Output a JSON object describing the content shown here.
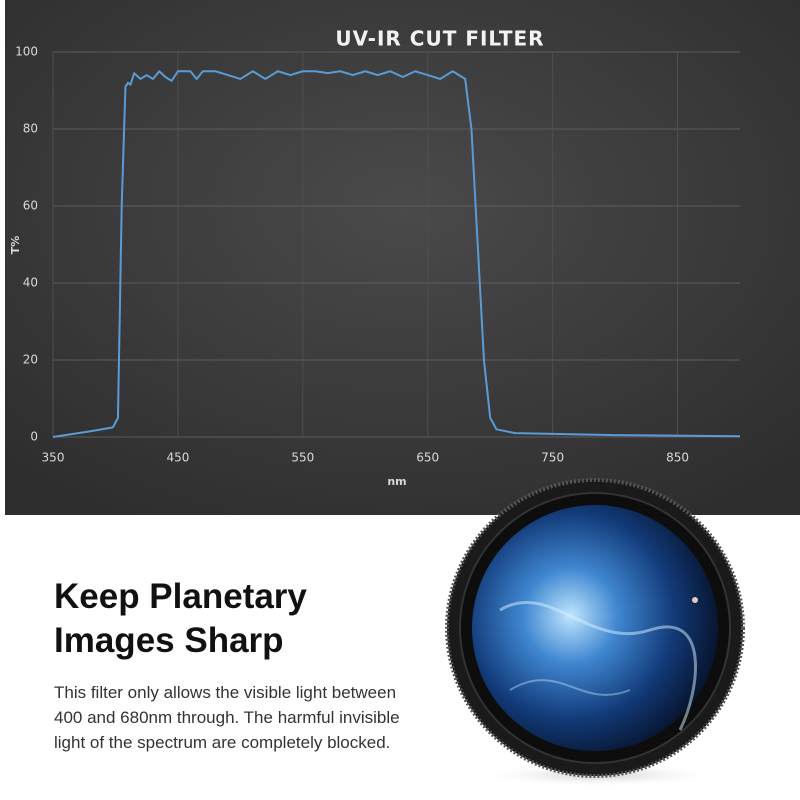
{
  "chart_data": {
    "type": "line",
    "title": "UV-IR CUT FILTER",
    "ylabel": "T%",
    "xlabel": "nm",
    "x": [
      350,
      380,
      398,
      402,
      405,
      408,
      410,
      412,
      415,
      420,
      425,
      430,
      435,
      440,
      445,
      450,
      460,
      465,
      470,
      480,
      490,
      500,
      510,
      520,
      530,
      540,
      550,
      560,
      570,
      580,
      590,
      600,
      610,
      620,
      630,
      640,
      650,
      660,
      670,
      675,
      680,
      685,
      690,
      695,
      700,
      705,
      720,
      800,
      900
    ],
    "series": [
      {
        "name": "T%",
        "color": "#5b9bd5",
        "values": [
          0,
          1.5,
          2.5,
          5,
          60,
          91,
          92,
          91.5,
          94.5,
          93,
          94,
          93,
          95,
          93.5,
          92.5,
          95,
          95,
          93,
          95,
          95,
          94,
          93,
          95,
          93,
          95,
          94,
          95,
          95,
          94.5,
          95,
          94,
          95,
          94,
          95,
          93.5,
          95,
          94,
          93,
          95,
          94,
          93,
          80,
          50,
          20,
          5,
          2,
          1,
          0.5,
          0.2
        ]
      }
    ],
    "xlim": [
      350,
      900
    ],
    "ylim": [
      0,
      100
    ],
    "xticks": [
      350,
      450,
      550,
      650,
      750,
      850
    ],
    "yticks": [
      0,
      20,
      40,
      60,
      80,
      100
    ],
    "grid": true
  },
  "heading": [
    "Keep Planetary",
    "Images Sharp"
  ],
  "description": [
    "This filter only allows the visible light between",
    "400 and 680nm through. The harmful invisible",
    "light of the spectrum are completely blocked."
  ]
}
